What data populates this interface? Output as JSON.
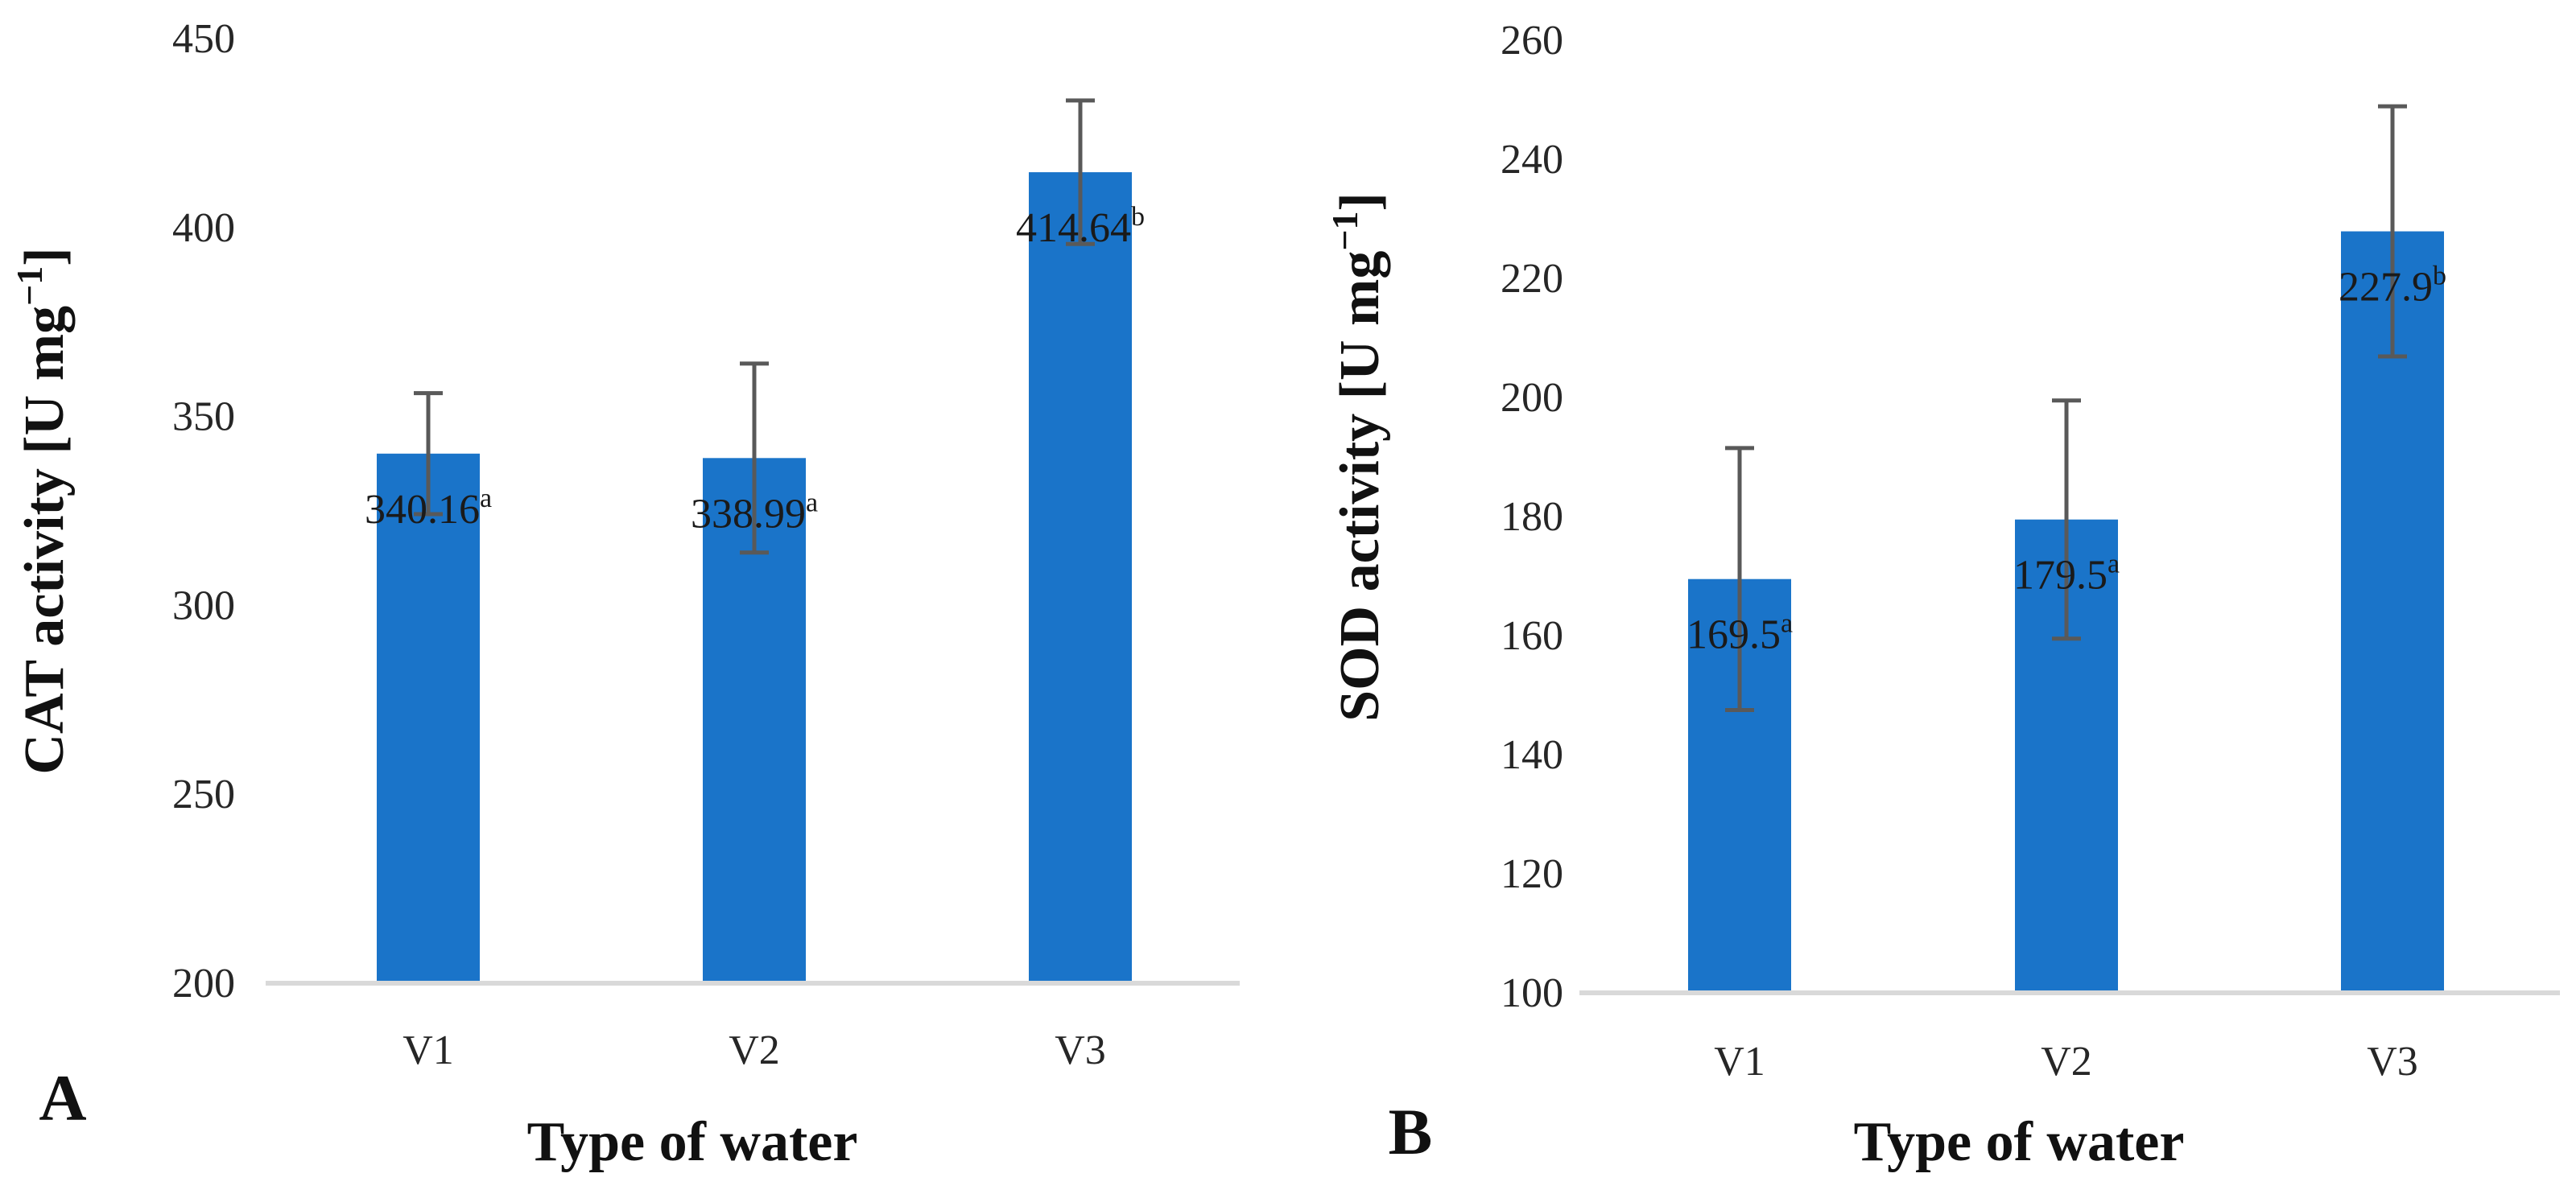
{
  "chart_data": [
    {
      "type": "bar",
      "panel_label": "A",
      "title": "",
      "xlabel": "Type of water",
      "ylabel": "CAT activity  [U mg",
      "ylabel_superscript": "−1",
      "ylabel_close": "]",
      "categories": [
        "V1",
        "V2",
        "V3"
      ],
      "values": [
        340.16,
        338.99,
        414.64
      ],
      "errors": [
        16,
        25,
        19
      ],
      "data_labels": [
        "340.16",
        "338.99",
        "414.64"
      ],
      "letters": [
        "a",
        "a",
        "b"
      ],
      "ylim": [
        200,
        450
      ],
      "yticks": [
        200,
        250,
        300,
        350,
        400,
        450
      ],
      "grid": false,
      "bar_color": "#1a74c9",
      "error_color": "#595959"
    },
    {
      "type": "bar",
      "panel_label": "B",
      "title": "",
      "xlabel": "Type of water",
      "ylabel": "SOD activity  [U mg",
      "ylabel_superscript": "−1",
      "ylabel_close": "]",
      "categories": [
        "V1",
        "V2",
        "V3"
      ],
      "values": [
        169.5,
        179.5,
        227.9
      ],
      "errors": [
        22,
        20,
        21
      ],
      "data_labels": [
        "169.5",
        "179.5",
        "227.9"
      ],
      "letters": [
        "a",
        "a",
        "b"
      ],
      "ylim": [
        100,
        260
      ],
      "yticks": [
        100,
        120,
        140,
        160,
        180,
        200,
        220,
        240,
        260
      ],
      "grid": false,
      "bar_color": "#1a74c9",
      "error_color": "#595959"
    }
  ]
}
